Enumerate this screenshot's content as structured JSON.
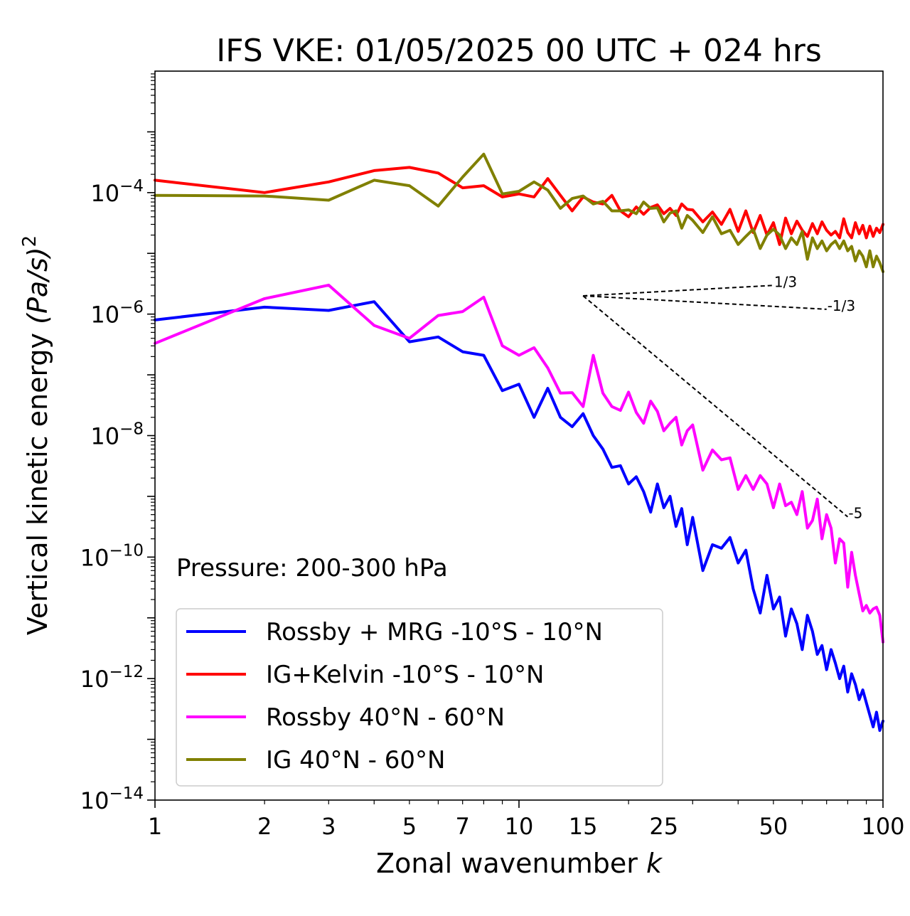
{
  "chart_data": {
    "type": "line",
    "title": "IFS VKE: 01/05/2025 00 UTC + 024 hrs",
    "xlabel": "Zonal wavenumber",
    "xlabel_var": "k",
    "ylabel": "Vertical kinetic energy",
    "ylabel_unit": "(Pa/s)",
    "ylabel_power": "2",
    "xscale": "log",
    "yscale": "log",
    "xlim": [
      1,
      100
    ],
    "ylim": [
      1e-14,
      0.01
    ],
    "x_ticks": [
      1,
      2,
      3,
      5,
      7,
      10,
      15,
      25,
      50,
      100
    ],
    "x_tick_labels": [
      "1",
      "2",
      "3",
      "5",
      "7",
      "10",
      "15",
      "25",
      "50",
      "100"
    ],
    "y_ticks": [
      {
        "value": 1e-14,
        "base": "10",
        "exp": "−14"
      },
      {
        "value": 1e-12,
        "base": "10",
        "exp": "−12"
      },
      {
        "value": 1e-10,
        "base": "10",
        "exp": "−10"
      },
      {
        "value": 1e-08,
        "base": "10",
        "exp": "−8"
      },
      {
        "value": 1e-06,
        "base": "10",
        "exp": "−6"
      },
      {
        "value": 0.0001,
        "base": "10",
        "exp": "−4"
      }
    ],
    "annotation_text": "Pressure: 200-300 hPa",
    "legend_position": "lower-left",
    "series": [
      {
        "name": "Rossby + MRG -10°S - 10°N",
        "color": "#0000ff",
        "x": [
          1,
          2,
          3,
          4,
          5,
          6,
          7,
          8,
          9,
          10,
          11,
          12,
          13,
          14,
          15,
          16,
          17,
          18,
          19,
          20,
          21,
          22,
          23,
          24,
          25,
          26,
          27,
          28,
          29,
          30,
          32,
          34,
          36,
          38,
          40,
          42,
          44,
          46,
          48,
          50,
          52,
          54,
          56,
          58,
          60,
          62,
          64,
          66,
          68,
          70,
          72,
          74,
          76,
          78,
          80,
          82,
          84,
          86,
          88,
          90,
          92,
          94,
          96,
          98,
          100
        ],
        "y": [
          8e-07,
          1.3e-06,
          1.15e-06,
          1.6e-06,
          3.5e-07,
          4.2e-07,
          2.4e-07,
          2.1e-07,
          5.5e-08,
          7e-08,
          2e-08,
          6e-08,
          2e-08,
          1.4e-08,
          2.3e-08,
          1e-08,
          6e-09,
          3e-09,
          3.2e-09,
          1.6e-09,
          2.1e-09,
          1.2e-09,
          5.5e-10,
          1.6e-09,
          6.5e-10,
          1e-09,
          3.2e-10,
          6.3e-10,
          1.6e-10,
          4.5e-10,
          6e-11,
          1.6e-10,
          1.4e-10,
          2.1e-10,
          8e-11,
          1.3e-10,
          3e-11,
          1.2e-11,
          5e-11,
          1.4e-11,
          2.2e-11,
          5e-12,
          1.4e-11,
          8e-12,
          3e-12,
          1.1e-11,
          6e-12,
          2.5e-12,
          3.5e-12,
          1.4e-12,
          3e-12,
          1.8e-12,
          1e-12,
          1.6e-12,
          6e-13,
          1.2e-12,
          8e-13,
          4.5e-13,
          6.5e-13,
          4e-13,
          2.5e-13,
          1.6e-13,
          2.8e-13,
          1.4e-13,
          2e-13
        ]
      },
      {
        "name": "IG+Kelvin -10°S - 10°N",
        "color": "#ff0000",
        "x": [
          1,
          2,
          3,
          4,
          5,
          6,
          7,
          8,
          9,
          10,
          11,
          12,
          13,
          14,
          15,
          16,
          17,
          18,
          19,
          20,
          21,
          22,
          23,
          24,
          25,
          26,
          27,
          28,
          29,
          30,
          32,
          34,
          36,
          38,
          40,
          42,
          44,
          46,
          48,
          50,
          52,
          54,
          56,
          58,
          60,
          62,
          64,
          66,
          68,
          70,
          72,
          74,
          76,
          78,
          80,
          82,
          84,
          86,
          88,
          90,
          92,
          94,
          96,
          98,
          100
        ],
        "y": [
          0.00016,
          0.0001,
          0.00015,
          0.00023,
          0.00026,
          0.00021,
          0.00012,
          0.00013,
          8.5e-05,
          9.5e-05,
          8.5e-05,
          0.00017,
          9e-05,
          5e-05,
          8.5e-05,
          7e-05,
          6.5e-05,
          9e-05,
          5e-05,
          4e-05,
          5.8e-05,
          4.4e-05,
          5.7e-05,
          6.3e-05,
          4.5e-05,
          5.5e-05,
          4.2e-05,
          6.5e-05,
          5.3e-05,
          5.2e-05,
          3.3e-05,
          4.8e-05,
          3e-05,
          5.3e-05,
          2.3e-05,
          5e-05,
          2.2e-05,
          4.2e-05,
          2e-05,
          3.2e-05,
          1.4e-05,
          3.8e-05,
          2.1e-05,
          3.4e-05,
          2.4e-05,
          1.9e-05,
          3.1e-05,
          2.1e-05,
          3.3e-05,
          2.4e-05,
          2e-05,
          2.3e-05,
          1.8e-05,
          3.7e-05,
          2.2e-05,
          1.8e-05,
          3.2e-05,
          2.1e-05,
          2.9e-05,
          1.8e-05,
          2.8e-05,
          1.9e-05,
          2.6e-05,
          2.2e-05,
          3e-05
        ]
      },
      {
        "name": "Rossby 40°N - 60°N",
        "color": "#ff00ff",
        "x": [
          1,
          2,
          3,
          4,
          5,
          6,
          7,
          8,
          9,
          10,
          11,
          12,
          13,
          14,
          15,
          16,
          17,
          18,
          19,
          20,
          21,
          22,
          23,
          24,
          25,
          26,
          27,
          28,
          29,
          30,
          32,
          34,
          36,
          38,
          40,
          42,
          44,
          46,
          48,
          50,
          52,
          54,
          56,
          58,
          60,
          62,
          64,
          66,
          68,
          70,
          72,
          74,
          76,
          78,
          80,
          82,
          84,
          86,
          88,
          90,
          92,
          94,
          96,
          98,
          100
        ],
        "y": [
          3.3e-07,
          1.8e-06,
          3e-06,
          6.5e-07,
          4e-07,
          9.5e-07,
          1.1e-06,
          1.9e-06,
          3e-07,
          2.1e-07,
          2.8e-07,
          1.3e-07,
          5e-08,
          5.1e-08,
          3e-08,
          2.1e-07,
          5e-08,
          3e-08,
          2.6e-08,
          5.2e-08,
          2.4e-08,
          1.6e-08,
          3.7e-08,
          2.5e-08,
          1.2e-08,
          1.6e-08,
          2e-08,
          7e-09,
          1.2e-08,
          1.5e-08,
          2.7e-09,
          5.8e-09,
          4e-09,
          4.3e-09,
          1.3e-09,
          2.2e-09,
          1.3e-09,
          2.2e-09,
          1.6e-09,
          6.5e-10,
          1.6e-09,
          7e-10,
          8e-10,
          5e-10,
          1.2e-09,
          3e-10,
          4e-10,
          9e-10,
          2e-10,
          5e-10,
          3e-10,
          8e-11,
          2e-10,
          1.7e-10,
          3.2e-11,
          1.2e-10,
          5e-11,
          2.5e-11,
          1.3e-11,
          1.6e-11,
          1.2e-11,
          1.4e-11,
          1.5e-11,
          1.1e-11,
          4e-12
        ]
      },
      {
        "name": "IG 40°N - 60°N",
        "color": "#808000",
        "x": [
          1,
          2,
          3,
          4,
          5,
          6,
          7,
          8,
          9,
          10,
          11,
          12,
          13,
          14,
          15,
          16,
          17,
          18,
          19,
          20,
          21,
          22,
          23,
          24,
          25,
          26,
          27,
          28,
          29,
          30,
          32,
          34,
          36,
          38,
          40,
          42,
          44,
          46,
          48,
          50,
          52,
          54,
          56,
          58,
          60,
          62,
          64,
          66,
          68,
          70,
          72,
          74,
          76,
          78,
          80,
          82,
          84,
          86,
          88,
          90,
          92,
          94,
          96,
          98,
          100
        ],
        "y": [
          9e-05,
          8.8e-05,
          7.5e-05,
          0.00016,
          0.00013,
          6e-05,
          0.00018,
          0.00043,
          9.5e-05,
          0.000105,
          0.00015,
          0.00011,
          5.5e-05,
          8e-05,
          8.8e-05,
          6.5e-05,
          7.2e-05,
          5e-05,
          5e-05,
          5.2e-05,
          4.5e-05,
          7e-05,
          5.5e-05,
          5.6e-05,
          3.3e-05,
          4.6e-05,
          5e-05,
          2.6e-05,
          4.2e-05,
          3.5e-05,
          2.2e-05,
          4e-05,
          2.1e-05,
          2.4e-05,
          1.4e-05,
          1.9e-05,
          2.5e-05,
          1.2e-05,
          2e-05,
          2.5e-05,
          2e-05,
          1.2e-05,
          1.8e-05,
          1.4e-05,
          2.3e-05,
          8e-06,
          1.8e-05,
          1.2e-05,
          1.6e-05,
          1.1e-05,
          1.4e-05,
          1.6e-05,
          1.2e-05,
          1.6e-05,
          1.1e-05,
          1.3e-05,
          7.5e-06,
          1.1e-05,
          9e-06,
          6e-06,
          1.1e-05,
          6e-06,
          9e-06,
          7e-06,
          5e-06
        ]
      }
    ],
    "reference_lines": [
      {
        "label": "1/3",
        "x": [
          15,
          50
        ],
        "y": [
          2e-06,
          2.97e-06
        ]
      },
      {
        "label": "-1/3",
        "x": [
          15,
          70
        ],
        "y": [
          2e-06,
          1.2e-06
        ]
      },
      {
        "label": "-5",
        "x": [
          15,
          80
        ],
        "y": [
          2e-06,
          4.6e-10
        ]
      }
    ]
  }
}
